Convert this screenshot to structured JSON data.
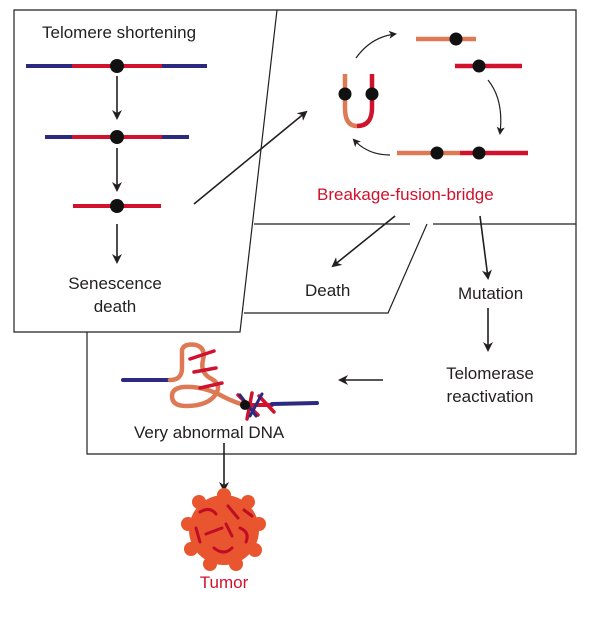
{
  "labels": {
    "telomere_shortening": "Telomere shortening",
    "senescence_line1": "Senescence",
    "senescence_line2": "death",
    "breakage_fusion_bridge": "Breakage-fusion-bridge",
    "death": "Death",
    "mutation": "Mutation",
    "telomerase_line1": "Telomerase",
    "telomerase_line2": "reactivation",
    "very_abnormal_dna": "Very abnormal DNA",
    "tumor": "Tumor"
  },
  "colors": {
    "line": "#231f20",
    "telomere_blue": "#2b2a80",
    "chromosome_red": "#d0122c",
    "chromosome_orange": "#dd7a55",
    "centromere": "#111111",
    "tumor_fill": "#e8552e",
    "label_red": "#d0122c"
  }
}
